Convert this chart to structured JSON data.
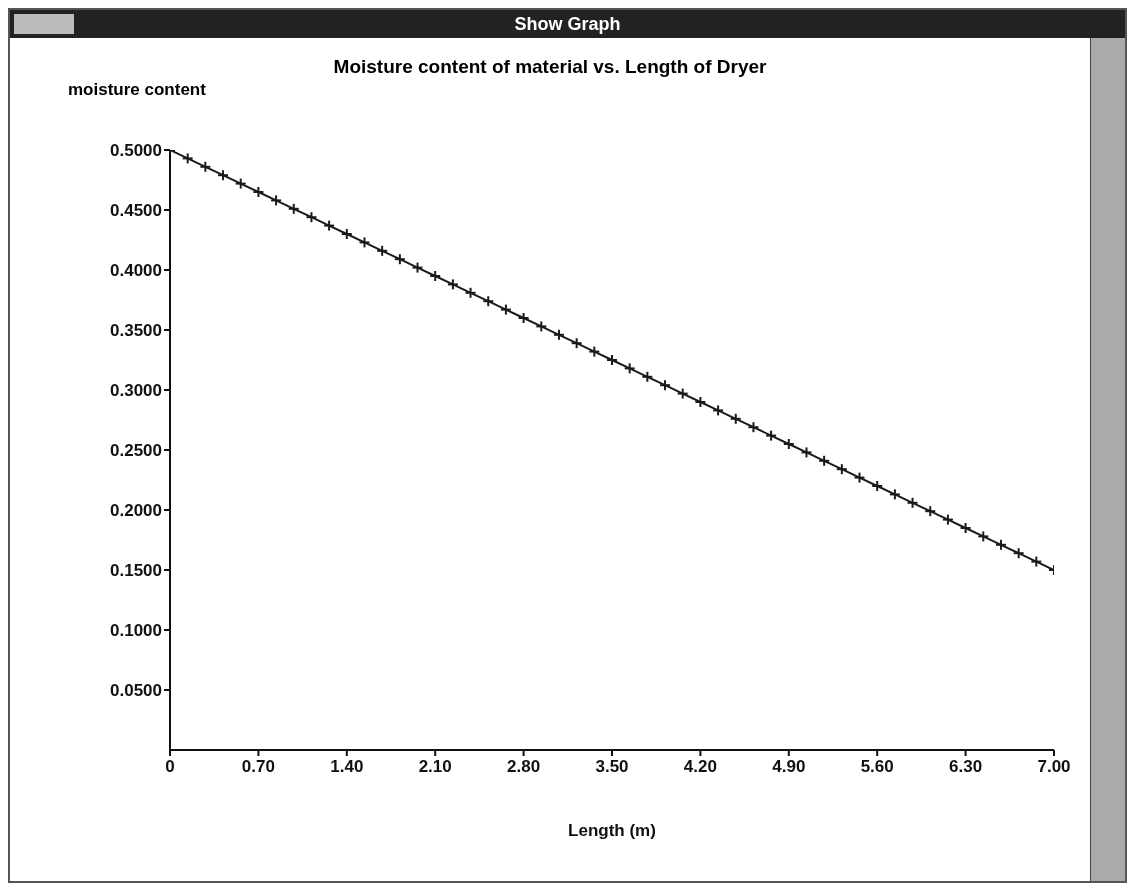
{
  "chart_data": {
    "type": "line",
    "title": "Moisture content of material vs. Length of Dryer",
    "xlabel": "Length (m)",
    "ylabel": "moisture content",
    "annotations": [
      "Show Graph"
    ],
    "x": [
      0,
      0.14,
      0.28,
      0.42,
      0.56,
      0.7,
      0.84,
      0.98,
      1.12,
      1.26,
      1.4,
      1.54,
      1.68,
      1.82,
      1.96,
      2.1,
      2.24,
      2.38,
      2.52,
      2.66,
      2.8,
      2.94,
      3.08,
      3.22,
      3.36,
      3.5,
      3.64,
      3.78,
      3.92,
      4.06,
      4.2,
      4.34,
      4.48,
      4.62,
      4.76,
      4.9,
      5.04,
      5.18,
      5.32,
      5.46,
      5.6,
      5.74,
      5.88,
      6.02,
      6.16,
      6.3,
      6.44,
      6.58,
      6.72,
      6.86,
      7
    ],
    "series": [
      {
        "color": "#1a1a1a",
        "values": [
          0.5,
          0.493,
          0.486,
          0.479,
          0.472,
          0.465,
          0.458,
          0.451,
          0.444,
          0.437,
          0.43,
          0.423,
          0.416,
          0.409,
          0.402,
          0.395,
          0.388,
          0.381,
          0.374,
          0.367,
          0.36,
          0.353,
          0.346,
          0.339,
          0.332,
          0.325,
          0.318,
          0.311,
          0.304,
          0.297,
          0.29,
          0.283,
          0.276,
          0.269,
          0.262,
          0.255,
          0.248,
          0.241,
          0.234,
          0.227,
          0.22,
          0.213,
          0.206,
          0.199,
          0.192,
          0.185,
          0.178,
          0.171,
          0.164,
          0.157,
          0.15
        ]
      }
    ],
    "xlim": [
      0,
      7
    ],
    "xticks": [
      0,
      {
        "value": 0.7,
        "label": "0.70"
      },
      {
        "value": 1.4,
        "label": "1.40"
      },
      {
        "value": 2.1,
        "label": "2.10"
      },
      {
        "value": 2.8,
        "label": "2.80"
      },
      {
        "value": 3.5,
        "label": "3.50"
      },
      {
        "value": 4.2,
        "label": "4.20"
      },
      {
        "value": 4.9,
        "label": "4.90"
      },
      {
        "value": 5.6,
        "label": "5.60"
      },
      {
        "value": 6.3,
        "label": "6.30"
      },
      {
        "value": 7,
        "label": "7.00"
      }
    ],
    "ylim": [
      0,
      0.5
    ],
    "yticks": [
      {
        "value": 0.05,
        "label": "0.0500"
      },
      {
        "value": 0.1,
        "label": "0.1000"
      },
      {
        "value": 0.15,
        "label": "0.1500"
      },
      {
        "value": 0.2,
        "label": "0.2000"
      },
      {
        "value": 0.25,
        "label": "0.2500"
      },
      {
        "value": 0.3,
        "label": "0.3000"
      },
      {
        "value": 0.35,
        "label": "0.3500"
      },
      {
        "value": 0.4,
        "label": "0.4000"
      },
      {
        "value": 0.45,
        "label": "0.4500"
      },
      {
        "value": 0.5,
        "label": "0.5000"
      }
    ],
    "grid": false,
    "legend": false,
    "marker": "cross",
    "line_style": "solid"
  }
}
